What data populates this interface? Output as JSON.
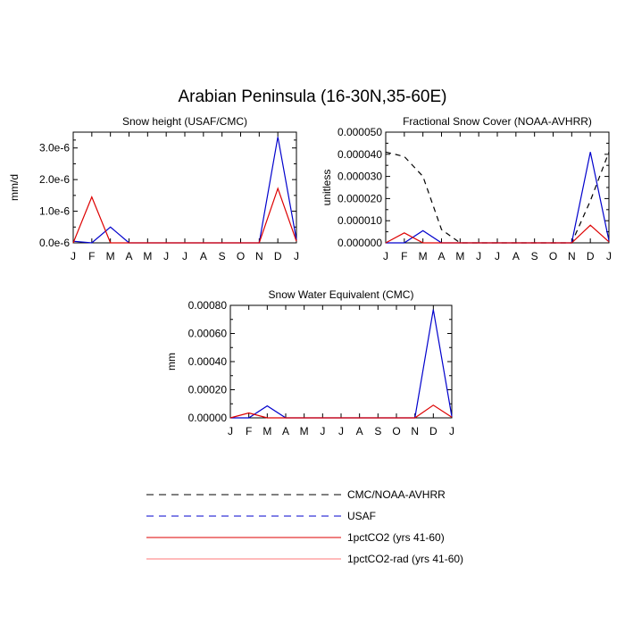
{
  "main_title": "Arabian Peninsula (16-30N,35-60E)",
  "months": [
    "J",
    "F",
    "M",
    "A",
    "M",
    "J",
    "J",
    "A",
    "S",
    "O",
    "N",
    "D",
    "J"
  ],
  "styles": {
    "obs": {
      "color": "#000000",
      "dash": "6 5"
    },
    "usaf": {
      "color": "#0000cc",
      "dash": ""
    },
    "co2": {
      "color": "#dd0000",
      "dash": ""
    }
  },
  "legend": [
    {
      "label": "CMC/NOAA-AVHRR",
      "color": "#000000",
      "dash": "8 6"
    },
    {
      "label": "USAF",
      "color": "#0000cc",
      "dash": "8 6"
    },
    {
      "label": "1pctCO2 (yrs 41-60)",
      "color": "#dd0000",
      "dash": ""
    },
    {
      "label": "1pctCO2-rad (yrs 41-60)",
      "color": "#ff7777",
      "dash": ""
    }
  ],
  "chart_data": [
    {
      "type": "line",
      "title": "Snow height (USAF/CMC)",
      "ylabel": "mm/d",
      "ylim": [
        0,
        3.5e-06
      ],
      "yticks": [
        0,
        1e-06,
        2e-06,
        3e-06
      ],
      "ytick_labels": [
        "0.0e-6",
        "1.0e-6",
        "2.0e-6",
        "3.0e-6"
      ],
      "x": [
        "J",
        "F",
        "M",
        "A",
        "M",
        "J",
        "J",
        "A",
        "S",
        "O",
        "N",
        "D",
        "J"
      ],
      "series": [
        {
          "style": "usaf",
          "values": [
            5e-08,
            0,
            5e-07,
            0,
            0,
            0,
            0,
            0,
            0,
            0,
            0,
            3.35e-06,
            1e-07
          ]
        },
        {
          "style": "co2",
          "values": [
            0,
            1.45e-06,
            0,
            0,
            0,
            0,
            0,
            0,
            0,
            0,
            0,
            1.72e-06,
            5e-08
          ]
        }
      ]
    },
    {
      "type": "line",
      "title": "Fractional Snow Cover (NOAA-AVHRR)",
      "ylabel": "unitless",
      "ylim": [
        0,
        5e-05
      ],
      "yticks": [
        0,
        1e-05,
        2e-05,
        3e-05,
        4e-05,
        5e-05
      ],
      "ytick_labels": [
        "0.000000",
        "0.000010",
        "0.000020",
        "0.000030",
        "0.000040",
        "0.000050"
      ],
      "x": [
        "J",
        "F",
        "M",
        "A",
        "M",
        "J",
        "J",
        "A",
        "S",
        "O",
        "N",
        "D",
        "J"
      ],
      "series": [
        {
          "style": "obs",
          "values": [
            4.1e-05,
            3.9e-05,
            3e-05,
            6e-06,
            0,
            0,
            0,
            0,
            0,
            0,
            0,
            1.9e-05,
            4.1e-05
          ]
        },
        {
          "style": "usaf",
          "values": [
            0,
            0,
            5.5e-06,
            0,
            0,
            0,
            0,
            0,
            0,
            0,
            0,
            4.1e-05,
            1e-06
          ]
        },
        {
          "style": "co2",
          "values": [
            0,
            4.5e-06,
            0,
            0,
            0,
            0,
            0,
            0,
            0,
            0,
            0,
            8e-06,
            5e-07
          ]
        }
      ]
    },
    {
      "type": "line",
      "title": "Snow Water Equivalent (CMC)",
      "ylabel": "mm",
      "ylim": [
        0,
        0.0008
      ],
      "yticks": [
        0,
        0.0002,
        0.0004,
        0.0006,
        0.0008
      ],
      "ytick_labels": [
        "0.00000",
        "0.00020",
        "0.00040",
        "0.00060",
        "0.00080"
      ],
      "x": [
        "J",
        "F",
        "M",
        "A",
        "M",
        "J",
        "J",
        "A",
        "S",
        "O",
        "N",
        "D",
        "J"
      ],
      "series": [
        {
          "style": "usaf",
          "values": [
            0,
            0,
            8.5e-05,
            0,
            0,
            0,
            0,
            0,
            0,
            0,
            0,
            0.00077,
            1e-05
          ]
        },
        {
          "style": "co2",
          "values": [
            0,
            3.5e-05,
            0,
            0,
            0,
            0,
            0,
            0,
            0,
            0,
            0,
            9e-05,
            5e-06
          ]
        }
      ]
    }
  ]
}
